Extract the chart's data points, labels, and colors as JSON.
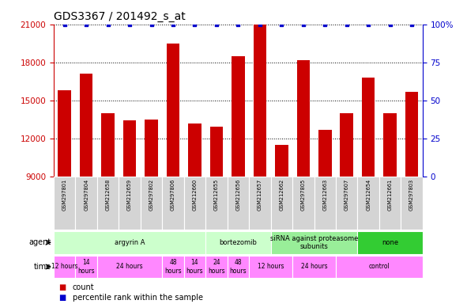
{
  "title": "GDS3367 / 201492_s_at",
  "samples": [
    "GSM297801",
    "GSM297804",
    "GSM212658",
    "GSM212659",
    "GSM297802",
    "GSM297806",
    "GSM212660",
    "GSM212655",
    "GSM212656",
    "GSM212657",
    "GSM212662",
    "GSM297805",
    "GSM212663",
    "GSM297607",
    "GSM212654",
    "GSM212661",
    "GSM297803"
  ],
  "counts": [
    15800,
    17100,
    14000,
    13400,
    13500,
    19500,
    13200,
    12900,
    18500,
    21000,
    11500,
    18200,
    12700,
    14000,
    16800,
    14000,
    15700
  ],
  "percentiles": [
    100,
    100,
    100,
    100,
    100,
    100,
    100,
    100,
    100,
    100,
    100,
    100,
    100,
    100,
    100,
    100,
    100
  ],
  "bar_color": "#cc0000",
  "dot_color": "#0000cc",
  "ylim_left": [
    9000,
    21000
  ],
  "yticks_left": [
    9000,
    12000,
    15000,
    18000,
    21000
  ],
  "ylim_right": [
    0,
    100
  ],
  "yticks_right": [
    0,
    25,
    50,
    75,
    100
  ],
  "yticklabels_right": [
    "0",
    "25",
    "50",
    "75",
    "100%"
  ],
  "agent_groups": [
    {
      "label": "argyrin A",
      "start": 0,
      "end": 7,
      "color": "#ccffcc"
    },
    {
      "label": "bortezomib",
      "start": 7,
      "end": 10,
      "color": "#ccffcc"
    },
    {
      "label": "siRNA against proteasome\nsubunits",
      "start": 10,
      "end": 14,
      "color": "#99ee99"
    },
    {
      "label": "none",
      "start": 14,
      "end": 17,
      "color": "#33cc33"
    }
  ],
  "time_groups": [
    {
      "label": "12 hours",
      "start": 0,
      "end": 1,
      "color": "#ff88ff"
    },
    {
      "label": "14\nhours",
      "start": 1,
      "end": 2,
      "color": "#ff88ff"
    },
    {
      "label": "24 hours",
      "start": 2,
      "end": 5,
      "color": "#ff88ff"
    },
    {
      "label": "48\nhours",
      "start": 5,
      "end": 6,
      "color": "#ff88ff"
    },
    {
      "label": "14\nhours",
      "start": 6,
      "end": 7,
      "color": "#ff88ff"
    },
    {
      "label": "24\nhours",
      "start": 7,
      "end": 8,
      "color": "#ff88ff"
    },
    {
      "label": "48\nhours",
      "start": 8,
      "end": 9,
      "color": "#ff88ff"
    },
    {
      "label": "12 hours",
      "start": 9,
      "end": 11,
      "color": "#ff88ff"
    },
    {
      "label": "24 hours",
      "start": 11,
      "end": 13,
      "color": "#ff88ff"
    },
    {
      "label": "control",
      "start": 13,
      "end": 17,
      "color": "#ff88ff"
    }
  ],
  "left_axis_color": "#cc0000",
  "right_axis_color": "#0000cc",
  "grid_color": "#000000",
  "title_fontsize": 10,
  "bar_width": 0.6,
  "fig_width": 5.91,
  "fig_height": 3.84,
  "fig_dpi": 100
}
